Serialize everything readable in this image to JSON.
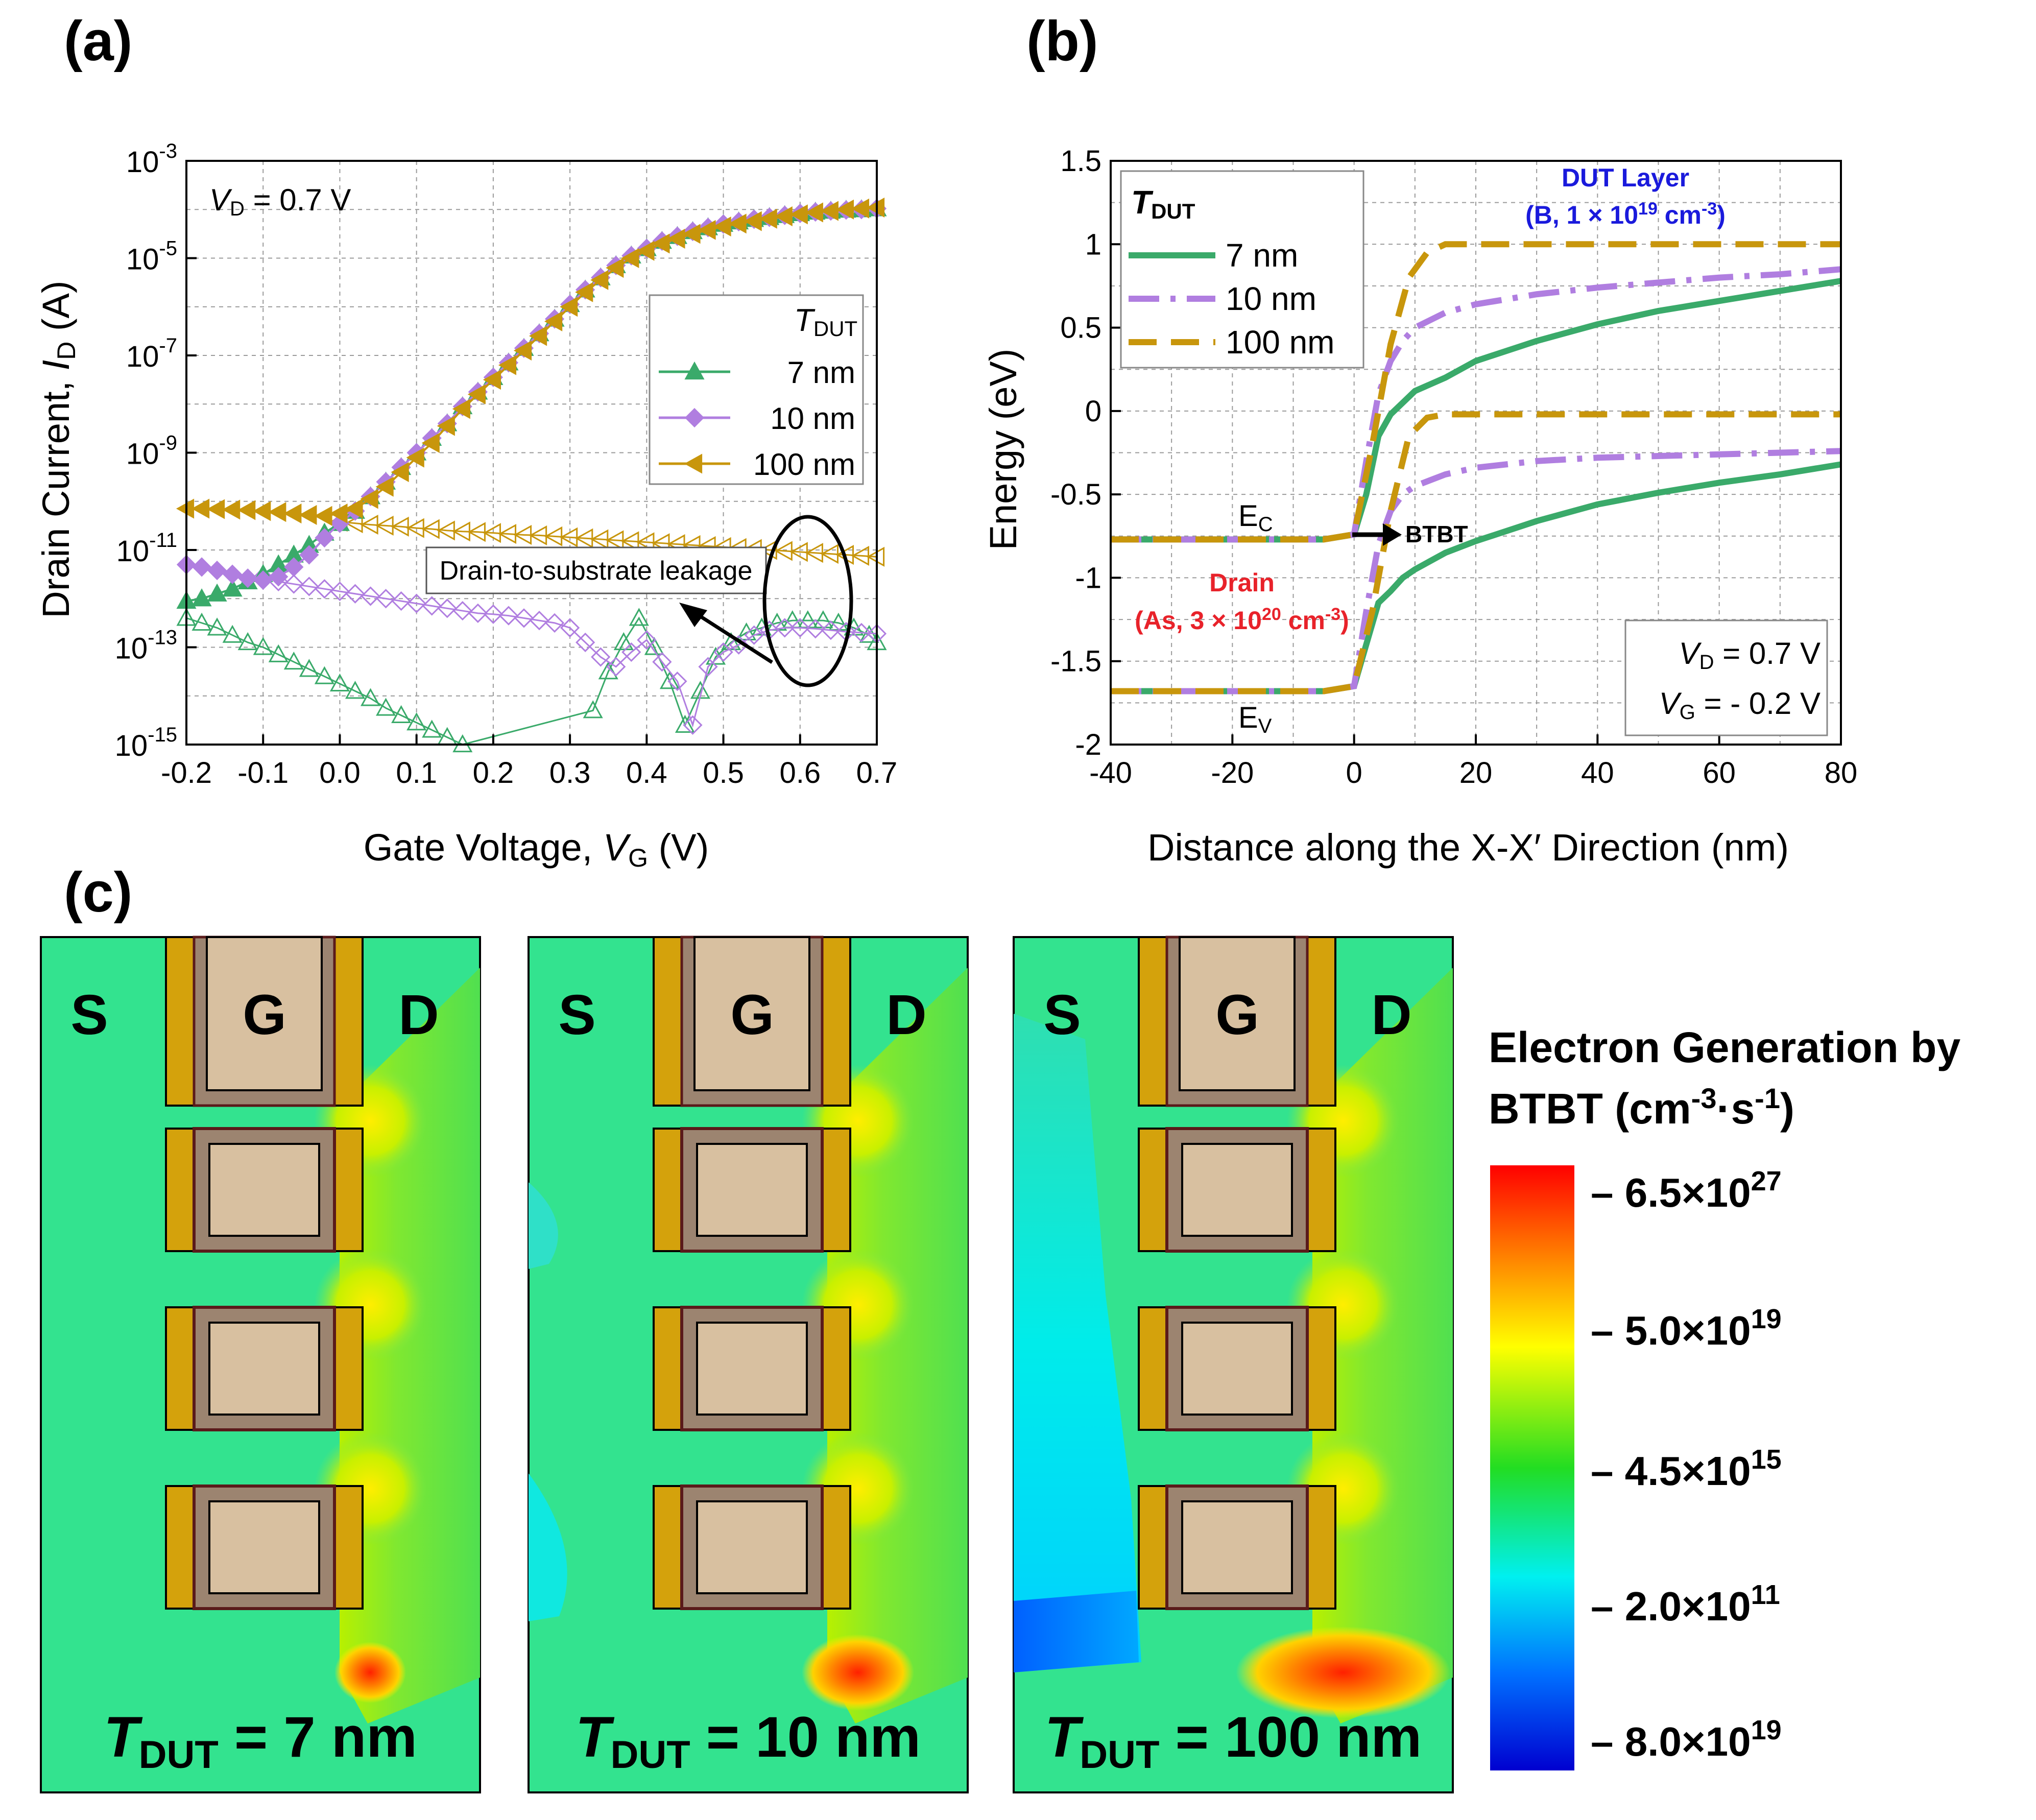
{
  "panels": {
    "a": "(a)",
    "b": "(b)",
    "c": "(c)"
  },
  "colors": {
    "s7": "#3aaa6a",
    "s10": "#b07ee0",
    "s100": "#c8960c",
    "axis": "#000000",
    "grid": "#9a9a9a",
    "dut_blue": "#1a1adc",
    "drain_red": "#e8222a",
    "field": "#33e38f"
  },
  "chart_data": [
    {
      "id": "a",
      "type": "scatter",
      "title": "",
      "xlabel_pre": "Gate Voltage, ",
      "xlabel_var": "V",
      "xlabel_sub": "G",
      "xlabel_post": " (V)",
      "ylabel_pre": "Drain Current, ",
      "ylabel_var": "I",
      "ylabel_sub": "D",
      "ylabel_post": " (A)",
      "xlim": [
        -0.2,
        0.7
      ],
      "ylim_log10": [
        -15,
        -3
      ],
      "xticks": [
        "-0.2",
        "-0.1",
        "0.0",
        "0.1",
        "0.2",
        "0.3",
        "0.4",
        "0.5",
        "0.6",
        "0.7"
      ],
      "xtick_values": [
        -0.2,
        -0.1,
        0.0,
        0.1,
        0.2,
        0.3,
        0.4,
        0.5,
        0.6,
        0.7
      ],
      "ytick_exponents": [
        "-3",
        "-5",
        "-7",
        "-9",
        "-11",
        "-13",
        "-15"
      ],
      "ytick_values": [
        -3,
        -5,
        -7,
        -9,
        -11,
        -13,
        -15
      ],
      "ytick_base": "10",
      "annotation_var": "V",
      "annotation_sub": "D",
      "annotation_val": " = 0.7 V",
      "legend_title_var": "T",
      "legend_title_sub": "DUT",
      "callout": "Drain-to-substrate leakage",
      "series": [
        {
          "name": "7 nm",
          "marker": "triangle-up",
          "on_x": [
            -0.2,
            -0.18,
            -0.16,
            -0.14,
            -0.12,
            -0.1,
            -0.08,
            -0.06,
            -0.04,
            -0.02,
            0.0,
            0.02,
            0.04,
            0.06,
            0.08,
            0.1,
            0.12,
            0.14,
            0.16,
            0.18,
            0.2,
            0.22,
            0.24,
            0.26,
            0.28,
            0.3,
            0.32,
            0.34,
            0.36,
            0.38,
            0.4,
            0.42,
            0.44,
            0.46,
            0.48,
            0.5,
            0.52,
            0.54,
            0.56,
            0.58,
            0.6,
            0.62,
            0.64,
            0.66,
            0.68,
            0.7
          ],
          "on_log10": [
            -12.05,
            -12.0,
            -11.9,
            -11.8,
            -11.65,
            -11.5,
            -11.3,
            -11.1,
            -10.9,
            -10.65,
            -10.45,
            -10.2,
            -9.9,
            -9.6,
            -9.3,
            -9.0,
            -8.7,
            -8.4,
            -8.05,
            -7.75,
            -7.45,
            -7.15,
            -6.85,
            -6.55,
            -6.25,
            -5.95,
            -5.65,
            -5.4,
            -5.15,
            -4.95,
            -4.8,
            -4.65,
            -4.55,
            -4.45,
            -4.37,
            -4.3,
            -4.25,
            -4.2,
            -4.16,
            -4.12,
            -4.08,
            -4.05,
            -4.03,
            -4.01,
            -4.0,
            -3.98
          ],
          "off_x": [
            -0.2,
            -0.18,
            -0.16,
            -0.14,
            -0.12,
            -0.1,
            -0.08,
            -0.06,
            -0.04,
            -0.02,
            0.0,
            0.02,
            0.04,
            0.06,
            0.08,
            0.1,
            0.12,
            0.14,
            0.16,
            0.33,
            0.35,
            0.37,
            0.39,
            0.41,
            0.43,
            0.45,
            0.47,
            0.49,
            0.51,
            0.53,
            0.55,
            0.57,
            0.59,
            0.61,
            0.63,
            0.65,
            0.67,
            0.69,
            0.7
          ],
          "off_log10": [
            -12.4,
            -12.5,
            -12.6,
            -12.75,
            -12.9,
            -13.0,
            -13.15,
            -13.3,
            -13.45,
            -13.6,
            -13.75,
            -13.9,
            -14.05,
            -14.25,
            -14.4,
            -14.55,
            -14.7,
            -14.85,
            -15.0,
            -14.3,
            -13.5,
            -12.9,
            -12.4,
            -13.0,
            -13.7,
            -14.6,
            -13.9,
            -13.2,
            -12.9,
            -12.7,
            -12.6,
            -12.5,
            -12.45,
            -12.45,
            -12.45,
            -12.5,
            -12.6,
            -12.75,
            -12.9
          ]
        },
        {
          "name": "10 nm",
          "marker": "diamond",
          "on_x": [
            -0.2,
            -0.18,
            -0.16,
            -0.14,
            -0.12,
            -0.1,
            -0.08,
            -0.06,
            -0.04,
            -0.02,
            0.0,
            0.02,
            0.04,
            0.06,
            0.08,
            0.1,
            0.12,
            0.14,
            0.16,
            0.18,
            0.2,
            0.22,
            0.24,
            0.26,
            0.28,
            0.3,
            0.32,
            0.34,
            0.36,
            0.38,
            0.4,
            0.42,
            0.44,
            0.46,
            0.48,
            0.5,
            0.52,
            0.54,
            0.56,
            0.58,
            0.6,
            0.62,
            0.64,
            0.66,
            0.68,
            0.7
          ],
          "on_log10": [
            -11.3,
            -11.35,
            -11.42,
            -11.5,
            -11.58,
            -11.62,
            -11.55,
            -11.35,
            -11.1,
            -10.75,
            -10.45,
            -10.2,
            -9.9,
            -9.6,
            -9.3,
            -9.0,
            -8.7,
            -8.4,
            -8.05,
            -7.75,
            -7.45,
            -7.15,
            -6.85,
            -6.55,
            -6.25,
            -5.95,
            -5.65,
            -5.4,
            -5.15,
            -4.95,
            -4.8,
            -4.65,
            -4.55,
            -4.45,
            -4.37,
            -4.3,
            -4.25,
            -4.2,
            -4.16,
            -4.12,
            -4.08,
            -4.05,
            -4.03,
            -4.01,
            -4.0,
            -3.98
          ],
          "off_x": [
            -0.1,
            -0.08,
            -0.06,
            -0.04,
            -0.02,
            0.0,
            0.02,
            0.04,
            0.06,
            0.08,
            0.1,
            0.12,
            0.14,
            0.16,
            0.18,
            0.2,
            0.22,
            0.24,
            0.26,
            0.28,
            0.3,
            0.32,
            0.34,
            0.36,
            0.38,
            0.4,
            0.42,
            0.44,
            0.46,
            0.48,
            0.5,
            0.52,
            0.54,
            0.56,
            0.58,
            0.6,
            0.62,
            0.64,
            0.66,
            0.68,
            0.7
          ],
          "off_log10": [
            -11.55,
            -11.65,
            -11.7,
            -11.75,
            -11.8,
            -11.85,
            -11.9,
            -11.95,
            -12.0,
            -12.05,
            -12.1,
            -12.15,
            -12.2,
            -12.25,
            -12.3,
            -12.32,
            -12.35,
            -12.4,
            -12.45,
            -12.5,
            -12.6,
            -12.9,
            -13.2,
            -13.4,
            -13.1,
            -12.85,
            -13.3,
            -13.7,
            -14.6,
            -13.4,
            -13.1,
            -12.95,
            -12.75,
            -12.65,
            -12.6,
            -12.6,
            -12.62,
            -12.65,
            -12.68,
            -12.7,
            -12.72
          ]
        },
        {
          "name": "100 nm",
          "marker": "triangle-left",
          "on_x": [
            -0.2,
            -0.18,
            -0.16,
            -0.14,
            -0.12,
            -0.1,
            -0.08,
            -0.06,
            -0.04,
            -0.02,
            0.0,
            0.02,
            0.04,
            0.06,
            0.08,
            0.1,
            0.12,
            0.14,
            0.16,
            0.18,
            0.2,
            0.22,
            0.24,
            0.26,
            0.28,
            0.3,
            0.32,
            0.34,
            0.36,
            0.38,
            0.4,
            0.42,
            0.44,
            0.46,
            0.48,
            0.5,
            0.52,
            0.54,
            0.56,
            0.58,
            0.6,
            0.62,
            0.64,
            0.66,
            0.68,
            0.7
          ],
          "on_log10": [
            -10.15,
            -10.15,
            -10.16,
            -10.17,
            -10.18,
            -10.2,
            -10.22,
            -10.25,
            -10.28,
            -10.3,
            -10.25,
            -10.15,
            -9.95,
            -9.7,
            -9.4,
            -9.1,
            -8.8,
            -8.45,
            -8.1,
            -7.8,
            -7.5,
            -7.2,
            -6.9,
            -6.6,
            -6.3,
            -6.0,
            -5.7,
            -5.45,
            -5.2,
            -5.0,
            -4.85,
            -4.7,
            -4.6,
            -4.5,
            -4.42,
            -4.35,
            -4.29,
            -4.24,
            -4.19,
            -4.14,
            -4.1,
            -4.06,
            -4.03,
            -4.0,
            -3.98,
            -3.96
          ],
          "off_x": [
            0.0,
            0.02,
            0.04,
            0.06,
            0.08,
            0.1,
            0.12,
            0.14,
            0.16,
            0.18,
            0.2,
            0.22,
            0.24,
            0.26,
            0.28,
            0.3,
            0.32,
            0.34,
            0.36,
            0.38,
            0.4,
            0.42,
            0.44,
            0.46,
            0.48,
            0.5,
            0.52,
            0.54,
            0.56,
            0.58,
            0.6,
            0.62,
            0.64,
            0.66,
            0.68,
            0.7
          ],
          "off_log10": [
            -10.42,
            -10.45,
            -10.48,
            -10.5,
            -10.52,
            -10.55,
            -10.57,
            -10.6,
            -10.62,
            -10.63,
            -10.65,
            -10.67,
            -10.69,
            -10.7,
            -10.72,
            -10.74,
            -10.76,
            -10.78,
            -10.8,
            -10.82,
            -10.84,
            -10.86,
            -10.88,
            -10.9,
            -10.92,
            -10.94,
            -10.96,
            -10.98,
            -11.0,
            -11.02,
            -11.04,
            -11.06,
            -11.08,
            -11.1,
            -11.12,
            -11.14
          ]
        }
      ]
    },
    {
      "id": "b",
      "type": "line",
      "xlabel": "Distance along the X-X′ Direction (nm)",
      "ylabel": "Energy (eV)",
      "xlim": [
        -40,
        80
      ],
      "ylim": [
        -2,
        1.5
      ],
      "xticks": [
        "-40",
        "-20",
        "0",
        "20",
        "40",
        "60",
        "80"
      ],
      "xtick_values": [
        -40,
        -20,
        0,
        20,
        40,
        60,
        80
      ],
      "yticks": [
        "1.5",
        "1",
        "0.5",
        "0",
        "-0.5",
        "-1",
        "-1.5",
        "-2"
      ],
      "ytick_values": [
        1.5,
        1,
        0.5,
        0,
        -0.5,
        -1,
        -1.5,
        -2
      ],
      "legend_title_var": "T",
      "legend_title_sub": "DUT",
      "labels": {
        "ec_main": "E",
        "ec_sub": "C",
        "ev_main": "E",
        "ev_sub": "V",
        "btbt": "BTBT",
        "dut_line1": "DUT Layer",
        "dut_line2_pre": "(B, 1 × 10",
        "dut_line2_sup": "19",
        "dut_line2_mid": " cm",
        "dut_line2_sup2": "-3",
        "dut_line2_post": ")",
        "drain_line1": "Drain",
        "drain_line2_pre": "(As, 3 × 10",
        "drain_line2_sup": "20",
        "drain_line2_mid": " cm",
        "drain_line2_sup2": "-3",
        "drain_line2_post": ")",
        "vd_var": "V",
        "vd_sub": "D",
        "vd_val": " = 0.7 V",
        "vg_var": "V",
        "vg_sub": "G",
        "vg_val": " = - 0.2 V"
      },
      "series": [
        {
          "name": "7 nm",
          "style": "solid",
          "ec_x": [
            -40,
            -5,
            0,
            2,
            4,
            6,
            8,
            10,
            15,
            20,
            30,
            40,
            50,
            60,
            70,
            80
          ],
          "ec_y": [
            -0.77,
            -0.77,
            -0.74,
            -0.5,
            -0.15,
            -0.02,
            0.05,
            0.12,
            0.2,
            0.3,
            0.42,
            0.52,
            0.6,
            0.66,
            0.72,
            0.78
          ],
          "ev_x": [
            -40,
            -5,
            0,
            2,
            4,
            6,
            8,
            10,
            15,
            20,
            30,
            40,
            50,
            60,
            70,
            80
          ],
          "ev_y": [
            -1.68,
            -1.68,
            -1.65,
            -1.4,
            -1.15,
            -1.08,
            -1.0,
            -0.95,
            -0.85,
            -0.78,
            -0.66,
            -0.56,
            -0.49,
            -0.43,
            -0.38,
            -0.32
          ]
        },
        {
          "name": "10 nm",
          "style": "dashdot",
          "ec_x": [
            -40,
            -5,
            0,
            2,
            4,
            6,
            8,
            10,
            15,
            20,
            30,
            40,
            50,
            60,
            70,
            80
          ],
          "ec_y": [
            -0.77,
            -0.77,
            -0.74,
            -0.3,
            0.1,
            0.3,
            0.42,
            0.5,
            0.59,
            0.64,
            0.7,
            0.74,
            0.77,
            0.8,
            0.82,
            0.85
          ],
          "ev_x": [
            -40,
            -5,
            0,
            2,
            4,
            6,
            8,
            10,
            15,
            20,
            30,
            40,
            50,
            60,
            70,
            80
          ],
          "ev_y": [
            -1.68,
            -1.68,
            -1.65,
            -1.2,
            -0.8,
            -0.6,
            -0.5,
            -0.45,
            -0.38,
            -0.34,
            -0.3,
            -0.28,
            -0.27,
            -0.26,
            -0.25,
            -0.24
          ]
        },
        {
          "name": "100 nm",
          "style": "dashed",
          "ec_x": [
            -40,
            -5,
            0,
            3,
            6,
            9,
            12,
            15,
            20,
            30,
            40,
            50,
            60,
            70,
            80
          ],
          "ec_y": [
            -0.77,
            -0.77,
            -0.74,
            -0.2,
            0.4,
            0.8,
            0.95,
            1.0,
            1.0,
            1.0,
            1.0,
            1.0,
            1.0,
            1.0,
            1.0
          ],
          "ev_x": [
            -40,
            -5,
            0,
            3,
            6,
            9,
            12,
            15,
            20,
            30,
            40,
            50,
            60,
            70,
            80
          ],
          "ev_y": [
            -1.68,
            -1.68,
            -1.65,
            -1.2,
            -0.6,
            -0.15,
            -0.04,
            -0.02,
            -0.02,
            -0.02,
            -0.02,
            -0.02,
            -0.02,
            -0.02,
            -0.02
          ]
        }
      ]
    },
    {
      "id": "c",
      "type": "heatmap",
      "panels": [
        {
          "s": "S",
          "g": "G",
          "d": "D",
          "label_var": "T",
          "label_sub": "DUT",
          "label_val": " = 7 nm"
        },
        {
          "s": "S",
          "g": "G",
          "d": "D",
          "label_var": "T",
          "label_sub": "DUT",
          "label_val": " = 10 nm"
        },
        {
          "s": "S",
          "g": "G",
          "d": "D",
          "label_var": "T",
          "label_sub": "DUT",
          "label_val": " = 100 nm"
        }
      ],
      "colorbar": {
        "title_line1": "Electron Generation by",
        "title_line2_pre": "BTBT (cm",
        "title_line2_sup1": "-3",
        "title_line2_mid": "·s",
        "title_line2_sup2": "-1",
        "title_line2_post": ")",
        "ticks": [
          {
            "mant": "6.5×10",
            "exp": "27"
          },
          {
            "mant": "5.0×10",
            "exp": "19"
          },
          {
            "mant": "4.5×10",
            "exp": "15"
          },
          {
            "mant": "2.0×10",
            "exp": "11"
          },
          {
            "mant": "8.0×10",
            "exp": "19"
          }
        ],
        "dash": "–"
      }
    }
  ]
}
